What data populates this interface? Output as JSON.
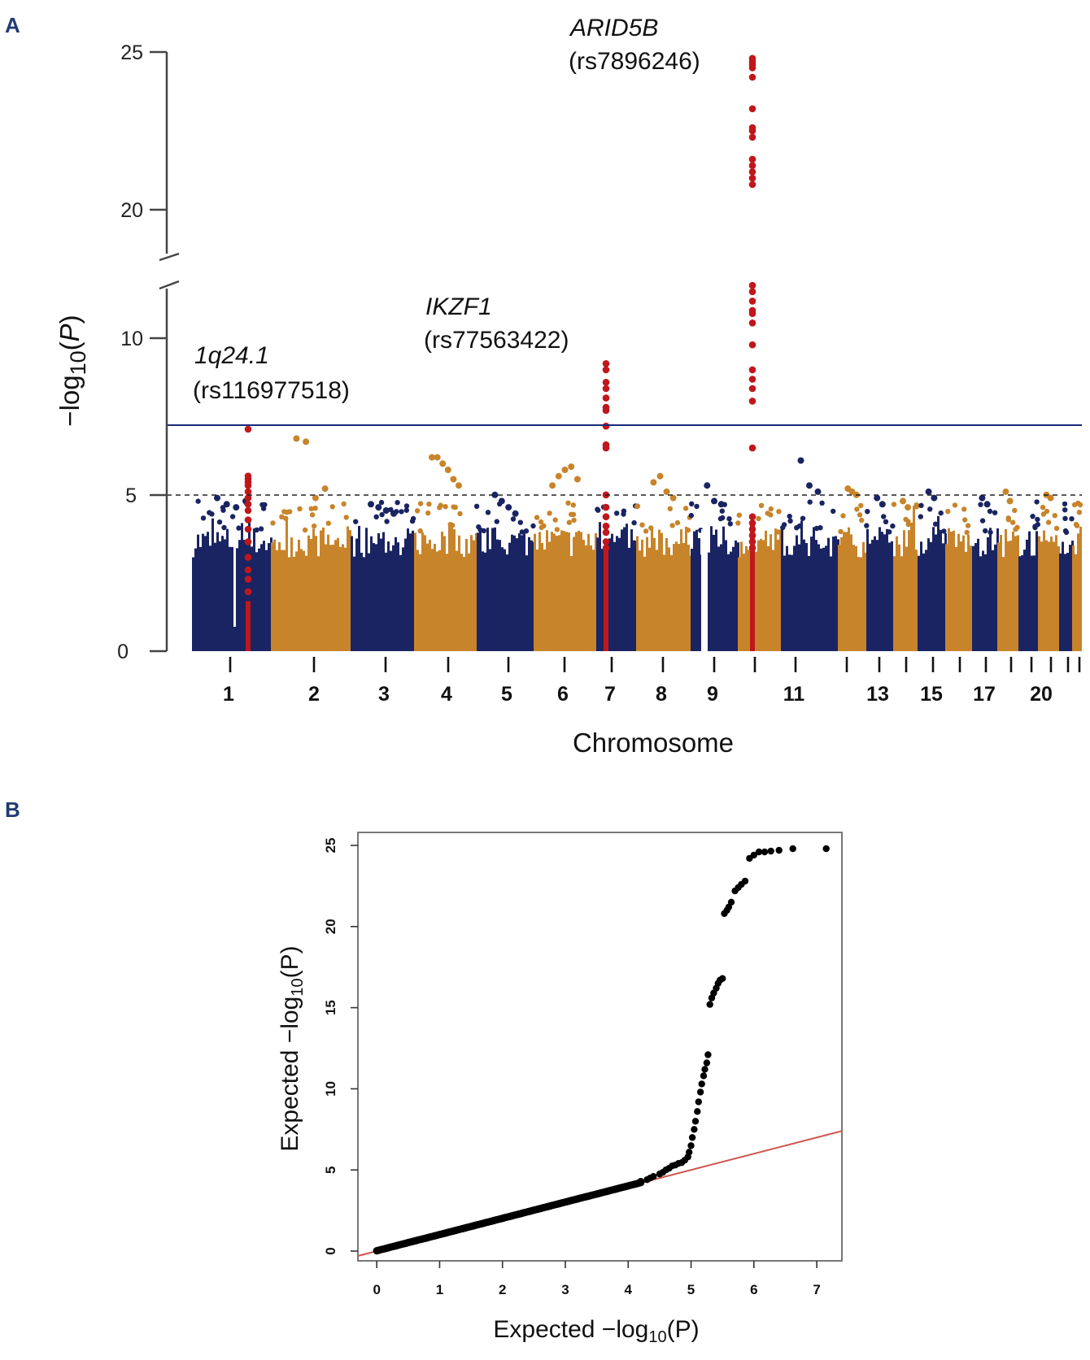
{
  "chart_data": [
    {
      "panel": "A",
      "type": "scatter",
      "ylabel": "−log10(P)",
      "xlabel": "Chromosome",
      "y_ticks": [
        "0",
        "5",
        "10",
        "20",
        "25"
      ],
      "y_axis_break": [
        12,
        18
      ],
      "ylim": [
        0,
        25
      ],
      "genome_wide_threshold": 7.3,
      "suggestive_threshold": 5,
      "chromosome_labels": [
        "1",
        "2",
        "3",
        "4",
        "5",
        "6",
        "7",
        "8",
        "9",
        "11",
        "13",
        "15",
        "17",
        "20"
      ],
      "chromosomes": [
        1,
        2,
        3,
        4,
        5,
        6,
        7,
        8,
        9,
        10,
        11,
        12,
        13,
        14,
        15,
        16,
        17,
        18,
        19,
        20,
        21,
        22
      ],
      "series_colors": {
        "odd": "#1a2462",
        "even": "#c8842a",
        "highlight": "#c0171c"
      },
      "annotations": [
        {
          "gene": "1q24.1",
          "snp": "(rs116977518)",
          "chromosome": 1,
          "peak": 7.1
        },
        {
          "gene": "IKZF1",
          "snp": "(rs77563422)",
          "chromosome": 7,
          "peak": 9.2
        },
        {
          "gene": "ARID5B",
          "snp": "(rs7896246)",
          "chromosome": 10,
          "peak": 24.8
        }
      ],
      "highlight_points": [
        {
          "chromosome": 1,
          "values": [
            7.1,
            5.6,
            5.5,
            5.4,
            5.3,
            5.1,
            4.9,
            4.7,
            4.5,
            4.2,
            3.9,
            3.5,
            3.0,
            2.6,
            2.3,
            1.9
          ]
        },
        {
          "chromosome": 7,
          "values": [
            9.2,
            9.0,
            8.6,
            8.4,
            8.1,
            7.8,
            7.7,
            7.2,
            6.6,
            6.5,
            5.0,
            4.6,
            4.3,
            4.0,
            3.8,
            3.5,
            3.3
          ]
        },
        {
          "chromosome": 10,
          "values": [
            24.8,
            24.7,
            24.6,
            24.5,
            24.2,
            23.2,
            22.6,
            22.5,
            22.3,
            21.6,
            21.4,
            21.2,
            21.0,
            20.8,
            11.7,
            11.5,
            11.2,
            10.9,
            10.8,
            10.5,
            9.8,
            9.0,
            8.7,
            8.4,
            8.0,
            6.5,
            4.3,
            4.1,
            3.9,
            3.7,
            3.5,
            3.3
          ]
        }
      ],
      "chromosome_max": [
        {
          "chromosome": 1,
          "values": [
            4.9,
            4.7,
            4.6,
            4.8
          ]
        },
        {
          "chromosome": 2,
          "values": [
            6.8,
            6.7,
            4.9,
            5.2
          ]
        },
        {
          "chromosome": 3,
          "values": [
            4.7,
            4.6,
            4.5,
            4.4
          ]
        },
        {
          "chromosome": 4,
          "values": [
            6.2,
            6.2,
            6.0,
            5.8,
            5.5,
            5.3
          ]
        },
        {
          "chromosome": 5,
          "values": [
            5.0,
            4.8,
            4.6,
            4.4
          ]
        },
        {
          "chromosome": 6,
          "values": [
            5.3,
            5.6,
            5.8,
            5.9,
            5.5
          ]
        },
        {
          "chromosome": 8,
          "values": [
            5.4,
            5.6,
            5.1,
            4.9
          ]
        },
        {
          "chromosome": 9,
          "values": [
            5.3,
            4.8,
            4.7
          ]
        },
        {
          "chromosome": 11,
          "values": [
            6.1,
            5.3,
            5.1
          ]
        },
        {
          "chromosome": 12,
          "values": [
            5.2,
            5.1,
            5.0
          ]
        },
        {
          "chromosome": 13,
          "values": [
            4.9,
            4.7
          ]
        },
        {
          "chromosome": 14,
          "values": [
            4.8,
            4.6
          ]
        },
        {
          "chromosome": 15,
          "values": [
            5.1,
            4.9
          ]
        },
        {
          "chromosome": 17,
          "values": [
            4.9,
            4.7
          ]
        },
        {
          "chromosome": 18,
          "values": [
            5.1,
            4.8
          ]
        },
        {
          "chromosome": 20,
          "values": [
            5.0,
            4.9
          ]
        }
      ]
    },
    {
      "panel": "B",
      "type": "scatter",
      "xlabel": "Expected −log10(P)",
      "ylabel": "Expected −log10(P)",
      "xlim": [
        -0.3,
        7.4
      ],
      "ylim": [
        -0.6,
        25.8
      ],
      "x_ticks": [
        "0",
        "1",
        "2",
        "3",
        "4",
        "5",
        "6",
        "7"
      ],
      "y_ticks": [
        "0",
        "5",
        "10",
        "15",
        "20",
        "25"
      ],
      "reference_line": {
        "from": [
          -0.3,
          -0.3
        ],
        "to": [
          7.4,
          7.4
        ],
        "color": "#d0544f"
      },
      "tail_points": [
        [
          4.2,
          4.3
        ],
        [
          4.3,
          4.4
        ],
        [
          4.35,
          4.5
        ],
        [
          4.4,
          4.6
        ],
        [
          4.5,
          4.75
        ],
        [
          4.55,
          4.85
        ],
        [
          4.6,
          5.0
        ],
        [
          4.65,
          5.1
        ],
        [
          4.7,
          5.25
        ],
        [
          4.75,
          5.3
        ],
        [
          4.8,
          5.4
        ],
        [
          4.85,
          5.45
        ],
        [
          4.9,
          5.6
        ],
        [
          4.95,
          5.8
        ],
        [
          4.97,
          6.1
        ],
        [
          5.0,
          6.5
        ],
        [
          5.02,
          7.0
        ],
        [
          5.05,
          7.5
        ],
        [
          5.07,
          8.0
        ],
        [
          5.1,
          8.6
        ],
        [
          5.12,
          9.2
        ],
        [
          5.15,
          9.8
        ],
        [
          5.17,
          10.3
        ],
        [
          5.2,
          10.8
        ],
        [
          5.22,
          11.2
        ],
        [
          5.25,
          11.6
        ],
        [
          5.27,
          12.1
        ],
        [
          5.3,
          15.2
        ],
        [
          5.33,
          15.6
        ],
        [
          5.36,
          15.9
        ],
        [
          5.4,
          16.2
        ],
        [
          5.43,
          16.5
        ],
        [
          5.46,
          16.7
        ],
        [
          5.5,
          16.8
        ],
        [
          5.53,
          20.8
        ],
        [
          5.57,
          21.0
        ],
        [
          5.6,
          21.2
        ],
        [
          5.64,
          21.5
        ],
        [
          5.7,
          22.2
        ],
        [
          5.75,
          22.4
        ],
        [
          5.8,
          22.6
        ],
        [
          5.86,
          22.8
        ],
        [
          5.93,
          24.2
        ],
        [
          6.0,
          24.4
        ],
        [
          6.08,
          24.6
        ],
        [
          6.17,
          24.6
        ],
        [
          6.27,
          24.65
        ],
        [
          6.4,
          24.7
        ],
        [
          6.62,
          24.8
        ],
        [
          7.15,
          24.8
        ]
      ]
    }
  ],
  "panel_a": {
    "letter": "A",
    "y_tick_labels": [
      "25",
      "20",
      "10",
      "5",
      "0"
    ],
    "chr_tick_labels": [
      "1",
      "2",
      "3",
      "4",
      "5",
      "6",
      "7",
      "8",
      "9",
      "11",
      "13",
      "15",
      "17",
      "20"
    ],
    "xlabel": "Chromosome",
    "ylabel_main": "−log",
    "ylabel_sub": "10",
    "ylabel_open": "(",
    "ylabel_var": "P",
    "ylabel_close": ")",
    "ann": {
      "chr1_gene": "1q24.1",
      "chr1_snp": "(rs116977518)",
      "chr7_gene": "IKZF1",
      "chr7_snp": "(rs77563422)",
      "chr10_gene": "ARID5B",
      "chr10_snp": "(rs7896246)"
    }
  },
  "panel_b": {
    "letter": "B",
    "x_tick_labels": [
      "0",
      "1",
      "2",
      "3",
      "4",
      "5",
      "6",
      "7"
    ],
    "y_tick_labels": [
      "0",
      "5",
      "10",
      "15",
      "20",
      "25"
    ],
    "xlabel_main": "Expected −log",
    "xlabel_sub": "10",
    "xlabel_rest": "(P)",
    "ylabel_main": "Expected −log",
    "ylabel_sub": "10",
    "ylabel_rest": "(P)"
  }
}
